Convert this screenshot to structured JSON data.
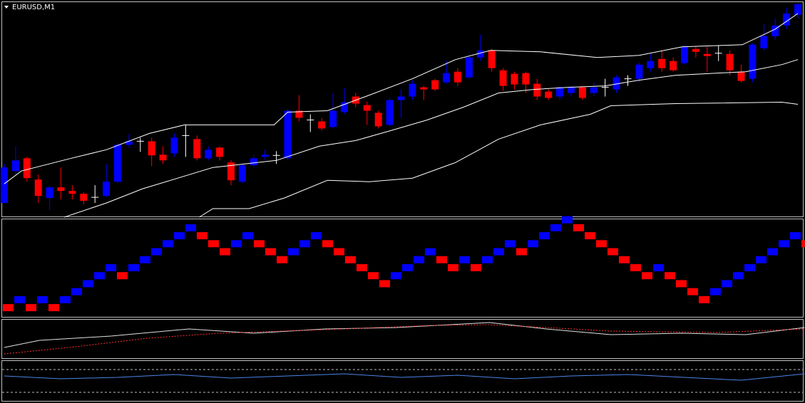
{
  "header": {
    "symbol": "EURUSD,M1"
  },
  "price_panel": {
    "up_color": "#0000ff",
    "down_color": "#ff0000",
    "doji_color": "#ffffff",
    "band_color": "#ffffff",
    "ylim": [
      0,
      302
    ],
    "candles": [
      [
        20,
        75,
        20,
        70
      ],
      [
        65,
        100,
        60,
        80
      ],
      [
        83,
        85,
        50,
        55
      ],
      [
        53,
        60,
        20,
        30
      ],
      [
        27,
        45,
        10,
        42
      ],
      [
        42,
        70,
        25,
        37
      ],
      [
        37,
        45,
        25,
        33
      ],
      [
        33,
        35,
        18,
        23
      ],
      [
        28,
        45,
        20,
        28
      ],
      [
        30,
        75,
        28,
        50
      ],
      [
        50,
        105,
        48,
        102
      ],
      [
        102,
        117,
        98,
        107
      ],
      [
        107,
        112,
        92,
        107
      ],
      [
        107,
        112,
        72,
        87
      ],
      [
        88,
        100,
        75,
        80
      ],
      [
        90,
        118,
        85,
        112
      ],
      [
        115,
        130,
        85,
        115
      ],
      [
        110,
        115,
        80,
        83
      ],
      [
        83,
        100,
        80,
        95
      ],
      [
        98,
        100,
        80,
        85
      ],
      [
        77,
        80,
        45,
        52
      ],
      [
        50,
        75,
        48,
        73
      ],
      [
        73,
        88,
        70,
        83
      ],
      [
        85,
        95,
        80,
        88
      ],
      [
        87,
        93,
        75,
        87
      ],
      [
        83,
        152,
        80,
        150
      ],
      [
        150,
        172,
        135,
        140
      ],
      [
        137,
        145,
        120,
        137
      ],
      [
        135,
        140,
        122,
        125
      ],
      [
        127,
        175,
        125,
        150
      ],
      [
        148,
        182,
        145,
        162
      ],
      [
        170,
        175,
        155,
        160
      ],
      [
        158,
        163,
        130,
        150
      ],
      [
        147,
        150,
        125,
        128
      ],
      [
        130,
        168,
        128,
        165
      ],
      [
        165,
        180,
        140,
        170
      ],
      [
        170,
        193,
        165,
        188
      ],
      [
        183,
        185,
        165,
        180
      ],
      [
        193,
        195,
        178,
        180
      ],
      [
        190,
        220,
        188,
        203
      ],
      [
        205,
        210,
        185,
        190
      ],
      [
        197,
        228,
        195,
        225
      ],
      [
        225,
        257,
        220,
        235
      ],
      [
        235,
        237,
        205,
        210
      ],
      [
        207,
        210,
        178,
        185
      ],
      [
        202,
        205,
        180,
        187
      ],
      [
        203,
        205,
        175,
        187
      ],
      [
        188,
        195,
        165,
        170
      ],
      [
        177,
        180,
        165,
        168
      ],
      [
        170,
        185,
        165,
        183
      ],
      [
        175,
        185,
        170,
        183
      ],
      [
        183,
        185,
        165,
        168
      ],
      [
        175,
        190,
        170,
        183
      ],
      [
        183,
        195,
        170,
        183
      ],
      [
        180,
        200,
        175,
        197
      ],
      [
        195,
        200,
        185,
        195
      ],
      [
        195,
        218,
        190,
        215
      ],
      [
        210,
        230,
        205,
        220
      ],
      [
        223,
        235,
        205,
        210
      ],
      [
        220,
        225,
        205,
        207
      ],
      [
        217,
        242,
        215,
        240
      ],
      [
        237,
        240,
        225,
        233
      ],
      [
        230,
        240,
        205,
        227
      ],
      [
        231,
        242,
        220,
        231
      ],
      [
        230,
        235,
        200,
        207
      ],
      [
        205,
        215,
        190,
        192
      ],
      [
        195,
        245,
        190,
        243
      ],
      [
        238,
        272,
        235,
        255
      ],
      [
        255,
        280,
        250,
        270
      ],
      [
        270,
        295,
        265,
        287
      ],
      [
        285,
        302,
        280,
        300
      ]
    ],
    "bands": [
      {
        "x": [
          0,
          1.5,
          5.9,
          9,
          12.8,
          15.9,
          23.8,
          25,
          28.5,
          32.2,
          36,
          39.8,
          42.9,
          47.3,
          52.3,
          56,
          59.8,
          65.1,
          68,
          70
        ],
        "values": [
          47,
          65,
          83,
          95,
          118,
          130,
          130,
          148,
          150,
          172,
          195,
          222,
          235,
          233,
          225,
          228,
          240,
          243,
          265,
          287
        ]
      },
      {
        "x": [
          5.3,
          9,
          12.2,
          15.3,
          18.4,
          24,
          27.8,
          31,
          34.1,
          37.3,
          40.5,
          43.6,
          46.7,
          49.8,
          53,
          56,
          59.2,
          65.4,
          68.6,
          70
        ],
        "values": [
          0,
          20,
          40,
          55,
          70,
          80,
          100,
          108,
          122,
          137,
          155,
          175,
          180,
          183,
          185,
          193,
          200,
          205,
          215,
          222
        ]
      },
      {
        "x": [
          17.2,
          18.4,
          21.6,
          24.7,
          28.5,
          32.2,
          36,
          39.8,
          43.6,
          47.3,
          51.7,
          53.5,
          59.2,
          68.6,
          70
        ],
        "values": [
          0,
          12,
          12,
          27,
          52,
          50,
          55,
          77,
          110,
          130,
          145,
          157,
          160,
          162,
          159
        ]
      }
    ]
  },
  "renko_panel": {
    "up_color": "#0000ff",
    "down_color": "#ff0000",
    "ylim": [
      0,
      12.5
    ],
    "values": [
      1,
      2,
      1,
      2,
      1,
      2,
      3,
      4,
      5,
      6,
      5,
      6,
      7,
      8,
      9,
      10,
      11,
      10,
      9,
      8,
      9,
      10,
      9,
      8,
      7,
      8,
      9,
      10,
      9,
      8,
      7,
      6,
      5,
      4,
      5,
      6,
      7,
      8,
      7,
      6,
      7,
      6,
      7,
      8,
      9,
      8,
      9,
      10,
      11,
      12,
      11,
      10,
      9,
      8,
      7,
      6,
      5,
      6,
      5,
      4,
      3,
      2,
      3,
      4,
      5,
      6,
      7,
      8,
      9,
      10,
      9
    ]
  },
  "osc_panel": {
    "ylim": [
      0,
      55
    ],
    "series": [
      {
        "color": "#e0e0e0",
        "x": [
          0,
          3.1,
          9.4,
          16.3,
          22,
          28.3,
          34.6,
          42.8,
          47.8,
          53.5,
          59.7,
          65.4,
          70.6
        ],
        "values": [
          15,
          25,
          31,
          41,
          35,
          41,
          43,
          50,
          41,
          33,
          35,
          33,
          43
        ]
      },
      {
        "color": "#ff3030",
        "dashed": true,
        "x": [
          0,
          6.3,
          12.6,
          18.9,
          28.3,
          37.7,
          42.8,
          47.8,
          53.5,
          62.9,
          70.6
        ],
        "values": [
          6,
          16,
          28,
          35,
          40,
          46,
          47,
          43,
          38,
          36,
          41
        ]
      }
    ]
  },
  "rsi_panel": {
    "ylim": [
      0,
      57
    ],
    "color": "#4a86e8",
    "levels": [
      44,
      12
    ],
    "x": [
      0,
      5,
      10,
      15,
      20,
      25,
      30,
      35,
      40,
      45,
      50,
      55,
      60,
      65,
      70.6
    ],
    "values": [
      35,
      31,
      33,
      37,
      32,
      35,
      38,
      33,
      36,
      31,
      35,
      37,
      33,
      29,
      38
    ]
  }
}
